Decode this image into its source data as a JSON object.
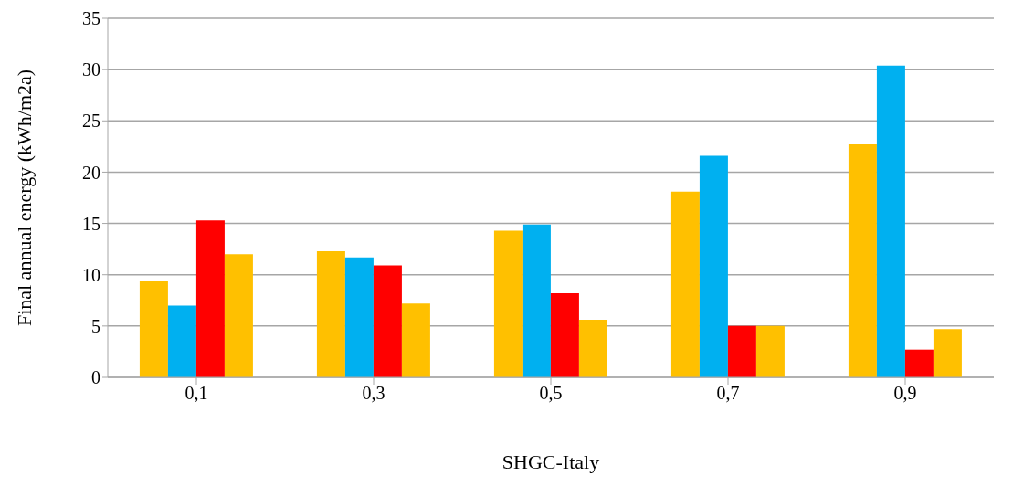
{
  "chart_data": {
    "type": "bar",
    "xlabel": "SHGC-Italy",
    "ylabel": "Final annual energy (kWh/m2a)",
    "categories": [
      "0,1",
      "0,3",
      "0,5",
      "0,7",
      "0,9"
    ],
    "series": [
      {
        "color": "#ffc000",
        "values": [
          9.4,
          12.3,
          14.3,
          18.1,
          22.7
        ]
      },
      {
        "color": "#00b0f0",
        "values": [
          7.0,
          11.7,
          14.9,
          21.6,
          30.4
        ]
      },
      {
        "color": "#ff0000",
        "values": [
          15.3,
          10.9,
          8.2,
          5.0,
          2.7
        ]
      },
      {
        "color": "#ffc000",
        "values": [
          12.0,
          7.2,
          5.6,
          5.0,
          4.7
        ]
      }
    ],
    "ylim": [
      0,
      35
    ],
    "yticks": [
      0,
      5,
      10,
      15,
      20,
      25,
      30,
      35
    ],
    "grid": "y",
    "legend": false
  }
}
